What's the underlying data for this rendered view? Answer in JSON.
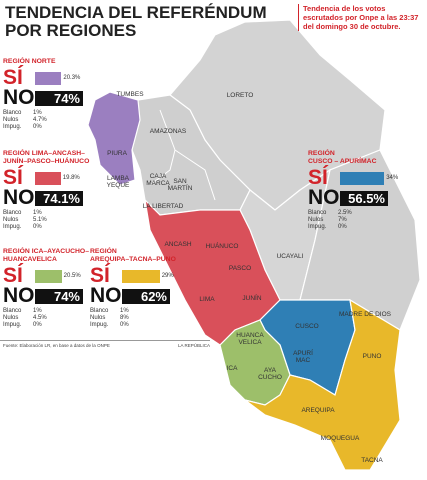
{
  "header": {
    "title": "TENDENCIA DEL REFERÉNDUM\nPOR REGIONES",
    "subtitle": "Tendencia de los votos escrutados por Onpe a las 23:37 del domingo 30 de octubre."
  },
  "labels": {
    "si": "SÍ",
    "no": "NO",
    "blanco": "Blanco",
    "nulos": "Nulos",
    "impug": "Impug."
  },
  "regions": [
    {
      "name": "REGIÓN NORTE",
      "color": "#9b7fc0",
      "si": {
        "value": 20.3,
        "label": "20.3%"
      },
      "no": {
        "value": 74,
        "label": "74%"
      },
      "blanco": "1%",
      "nulos": "4.7%",
      "impug": "0%"
    },
    {
      "name": "REGIÓN LIMA–ANCASH–\nJUNÍN–PASCO–HUÁNUCO",
      "color": "#d9505a",
      "si": {
        "value": 19.8,
        "label": "19.8%"
      },
      "no": {
        "value": 74.1,
        "label": "74.1%"
      },
      "blanco": "1%",
      "nulos": "5.1%",
      "impug": "0%"
    },
    {
      "name": "REGIÓN\nCUSCO – APURÍMAC",
      "color": "#2f7fb5",
      "si": {
        "value": 34,
        "label": "34%"
      },
      "no": {
        "value": 56.5,
        "label": "56.5%"
      },
      "blanco": "2.5%",
      "nulos": "7%",
      "impug": "0%"
    },
    {
      "name": "REGIÓN ICA–AYACUCHO–\nHUANCAVELICA",
      "color": "#9dbf6a",
      "si": {
        "value": 20.5,
        "label": "20.5%"
      },
      "no": {
        "value": 74,
        "label": "74%"
      },
      "blanco": "1%",
      "nulos": "4.5%",
      "impug": "0%"
    },
    {
      "name": "REGIÓN\nAREQUIPA–TACNA–PUNO",
      "color": "#e8b82a",
      "si": {
        "value": 29,
        "label": "29%"
      },
      "no": {
        "value": 62,
        "label": "62%"
      },
      "blanco": "1%",
      "nulos": "8%",
      "impug": "0%"
    }
  ],
  "map": {
    "labels": [
      "TUMBES",
      "PIURA",
      "LAMBA\nYEQUE",
      "AMAZONAS",
      "CAJA\nMARCA",
      "SAN\nMARTÍN",
      "LA LIBERTAD",
      "LORETO",
      "ANCASH",
      "HUÁNUCO",
      "PASCO",
      "LIMA",
      "JUNÍN",
      "UCAYALI",
      "MADRE DE DIOS",
      "CUSCO",
      "HUANCA\nVELICA",
      "APURÍ\nMAC",
      "ICA",
      "AYA\nCUCHO",
      "PUNO",
      "AREQUIPA",
      "MOQUEGUA",
      "TACNA"
    ]
  },
  "footer": {
    "source": "Fuente: Elaboración LR, en base a datos de la ONPE",
    "brand": "LA REPÚBLICA"
  }
}
